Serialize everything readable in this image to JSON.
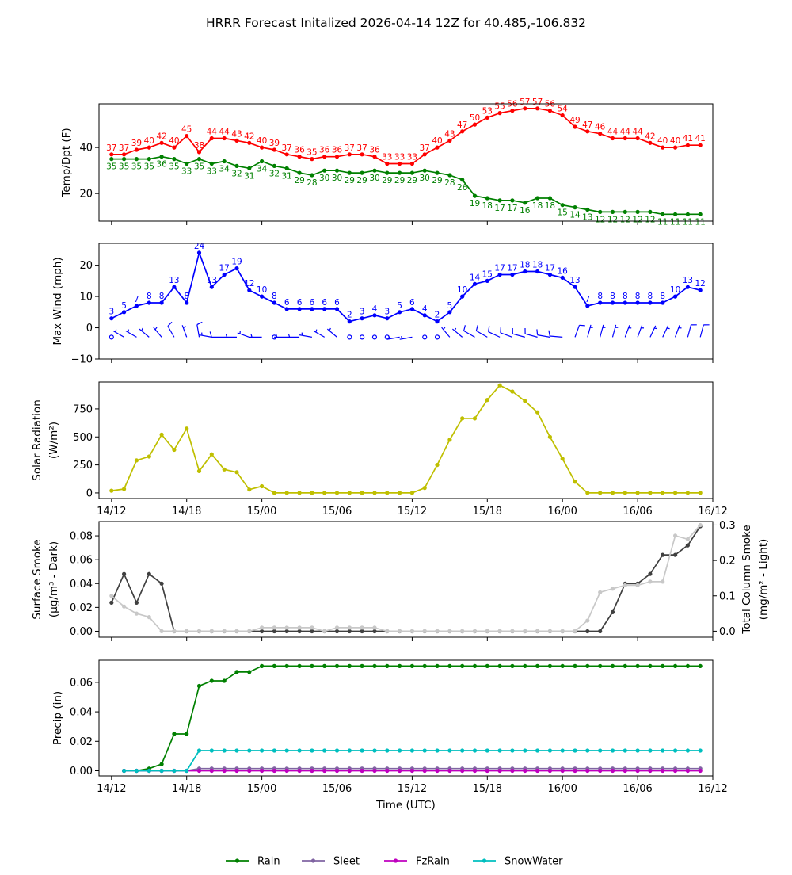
{
  "title": "HRRR Forecast Initalized 2026-04-14 12Z for 40.485,-106.832",
  "colors": {
    "temp": "#ff0000",
    "dewpoint": "#008000",
    "wind": "#0000ff",
    "solar": "#bfbf00",
    "smoke_dark": "#404040",
    "smoke_light": "#c8c8c8",
    "rain": "#008000",
    "sleet": "#8064a2",
    "fzrain": "#bf00bf",
    "snowwater": "#00bfbf"
  },
  "x_axis": {
    "range": [
      -1,
      48
    ],
    "ticks": [
      0,
      6,
      12,
      18,
      24,
      30,
      36,
      42,
      48
    ],
    "tick_labels": [
      "14/12",
      "14/18",
      "15/00",
      "15/06",
      "15/12",
      "15/18",
      "16/00",
      "16/06",
      "16/12"
    ],
    "label": "Time (UTC)"
  },
  "chart_data": [
    {
      "type": "line",
      "panel": "temp",
      "ylabel": "Temp/Dpt (F)",
      "ylim": [
        8,
        59
      ],
      "yticks": [
        20,
        40
      ],
      "ytick_labels": [
        "20",
        "40"
      ],
      "freezing_line": 32,
      "series": [
        {
          "name": "Temperature",
          "labels": true,
          "values": [
            37,
            37,
            39,
            40,
            42,
            40,
            45,
            38,
            44,
            44,
            43,
            42,
            40,
            39,
            37,
            36,
            35,
            36,
            36,
            37,
            37,
            36,
            33,
            33,
            33,
            37,
            40,
            43,
            47,
            50,
            53,
            55,
            56,
            57,
            57,
            56,
            54,
            49,
            47,
            46,
            44,
            44,
            44,
            42,
            40,
            40,
            41,
            41
          ]
        },
        {
          "name": "Dewpoint",
          "labels": true,
          "values": [
            35,
            35,
            35,
            35,
            36,
            35,
            33,
            35,
            33,
            34,
            32,
            31,
            34,
            32,
            31,
            29,
            28,
            30,
            30,
            29,
            29,
            30,
            29,
            29,
            29,
            30,
            29,
            28,
            26,
            19,
            18,
            17,
            17,
            16,
            18,
            18,
            15,
            14,
            13,
            12,
            12,
            12,
            12,
            12,
            11,
            11,
            11,
            11
          ]
        }
      ]
    },
    {
      "type": "line",
      "panel": "wind",
      "ylabel": "Max Wind (mph)",
      "ylim": [
        -10,
        27
      ],
      "yticks": [
        -10,
        0,
        10,
        20
      ],
      "ytick_labels": [
        "−10",
        "0",
        "10",
        "20"
      ],
      "series": [
        {
          "name": "Max Wind",
          "labels": true,
          "values": [
            3,
            5,
            7,
            8,
            8,
            13,
            8,
            24,
            13,
            17,
            19,
            12,
            10,
            8,
            6,
            6,
            6,
            6,
            6,
            2,
            3,
            4,
            3,
            5,
            6,
            4,
            2,
            5,
            10,
            14,
            15,
            17,
            17,
            18,
            18,
            17,
            16,
            13,
            7,
            8,
            8,
            8,
            8,
            8,
            8,
            10,
            13,
            12
          ]
        }
      ],
      "wind_barbs": {
        "y_value": -3,
        "directions": [
          0,
          300,
          300,
          310,
          320,
          330,
          340,
          350,
          280,
          270,
          270,
          290,
          270,
          0,
          270,
          270,
          280,
          300,
          310,
          0,
          0,
          0,
          0,
          260,
          260,
          0,
          0,
          320,
          310,
          300,
          300,
          295,
          290,
          285,
          285,
          280,
          275,
          20,
          15,
          15,
          15,
          20,
          20,
          25,
          25,
          20,
          15,
          15
        ],
        "speeds": [
          0,
          8,
          8,
          8,
          8,
          13,
          8,
          13,
          8,
          13,
          8,
          8,
          8,
          0,
          8,
          8,
          8,
          8,
          8,
          0,
          0,
          0,
          0,
          8,
          8,
          0,
          0,
          8,
          8,
          13,
          13,
          13,
          13,
          13,
          13,
          13,
          13,
          13,
          8,
          8,
          8,
          8,
          8,
          8,
          8,
          8,
          13,
          13
        ]
      }
    },
    {
      "type": "line",
      "panel": "solar",
      "ylabel": "Solar Radiation",
      "ylabel_units": "(W/m²)",
      "ylim": [
        -50,
        990
      ],
      "yticks": [
        0,
        250,
        500,
        750
      ],
      "ytick_labels": [
        "0",
        "250",
        "500",
        "750"
      ],
      "series": [
        {
          "name": "Solar Radiation",
          "values": [
            20,
            35,
            290,
            325,
            520,
            385,
            575,
            195,
            345,
            210,
            185,
            30,
            60,
            0,
            0,
            0,
            0,
            0,
            0,
            0,
            0,
            0,
            0,
            0,
            0,
            45,
            250,
            475,
            665,
            665,
            830,
            960,
            905,
            820,
            720,
            500,
            305,
            100,
            0,
            0,
            0,
            0,
            0,
            0,
            0,
            0,
            0,
            0
          ]
        }
      ]
    },
    {
      "type": "line",
      "panel": "smoke",
      "ylabel": "Surface Smoke",
      "ylabel_units": "(μg/m³ - Dark)",
      "ylim": [
        -0.005,
        0.092
      ],
      "yticks": [
        0,
        0.02,
        0.04,
        0.06,
        0.08
      ],
      "ytick_labels": [
        "0.00",
        "0.02",
        "0.04",
        "0.06",
        "0.08"
      ],
      "y2label": "Total Column Smoke",
      "y2label_units": "(mg/m² - Light)",
      "y2lim": [
        -0.017,
        0.31
      ],
      "y2ticks": [
        0,
        0.1,
        0.2,
        0.3
      ],
      "y2tick_labels": [
        "0.0",
        "0.1",
        "0.2",
        "0.3"
      ],
      "series": [
        {
          "name": "Surface Smoke",
          "axis": "left",
          "values": [
            0.024,
            0.048,
            0.024,
            0.048,
            0.04,
            0,
            0,
            0,
            0,
            0,
            0,
            0,
            0,
            0,
            0,
            0,
            0,
            0,
            0,
            0,
            0,
            0,
            0,
            0,
            0,
            0,
            0,
            0,
            0,
            0,
            0,
            0,
            0,
            0,
            0,
            0,
            0,
            0,
            0,
            0,
            0.016,
            0.04,
            0.04,
            0.048,
            0.064,
            0.064,
            0.072,
            0.088
          ]
        },
        {
          "name": "Total Column Smoke",
          "axis": "right",
          "values": [
            0.1,
            0.07,
            0.05,
            0.04,
            0,
            0,
            0,
            0,
            0,
            0,
            0,
            0,
            0.01,
            0.01,
            0.01,
            0.01,
            0.01,
            0,
            0.01,
            0.01,
            0.01,
            0.01,
            0,
            0,
            0,
            0,
            0,
            0,
            0,
            0,
            0,
            0,
            0,
            0,
            0,
            0,
            0,
            0,
            0.03,
            0.11,
            0.12,
            0.13,
            0.13,
            0.14,
            0.14,
            0.27,
            0.26,
            0.3
          ]
        }
      ]
    },
    {
      "type": "line",
      "panel": "precip",
      "ylabel": "Precip (in)",
      "ylim": [
        -0.0035,
        0.075
      ],
      "yticks": [
        0,
        0.02,
        0.04,
        0.06
      ],
      "ytick_labels": [
        "0.00",
        "0.02",
        "0.04",
        "0.06"
      ],
      "x_start": 1,
      "series": [
        {
          "name": "Rain",
          "values": [
            0,
            0,
            0.0015,
            0.0045,
            0.025,
            0.025,
            0.0575,
            0.061,
            0.061,
            0.067,
            0.067,
            0.071,
            0.071,
            0.071,
            0.071,
            0.071,
            0.071,
            0.071,
            0.071,
            0.071,
            0.071,
            0.071,
            0.071,
            0.071,
            0.071,
            0.071,
            0.071,
            0.071,
            0.071,
            0.071,
            0.071,
            0.071,
            0.071,
            0.071,
            0.071,
            0.071,
            0.071,
            0.071,
            0.071,
            0.071,
            0.071,
            0.071,
            0.071,
            0.071,
            0.071,
            0.071,
            0.071
          ]
        },
        {
          "name": "Sleet",
          "values": [
            0,
            0,
            0,
            0,
            0,
            0,
            0.0015,
            0.0015,
            0.0015,
            0.0015,
            0.0015,
            0.0015,
            0.0015,
            0.0015,
            0.0015,
            0.0015,
            0.0015,
            0.0015,
            0.0015,
            0.0015,
            0.0015,
            0.0015,
            0.0015,
            0.0015,
            0.0015,
            0.0015,
            0.0015,
            0.0015,
            0.0015,
            0.0015,
            0.0015,
            0.0015,
            0.0015,
            0.0015,
            0.0015,
            0.0015,
            0.0015,
            0.0015,
            0.0015,
            0.0015,
            0.0015,
            0.0015,
            0.0015,
            0.0015,
            0.0015,
            0.0015,
            0.0015
          ]
        },
        {
          "name": "FzRain",
          "values": [
            0,
            0,
            0,
            0,
            0,
            0,
            0,
            0,
            0,
            0,
            0,
            0,
            0,
            0,
            0,
            0,
            0,
            0,
            0,
            0,
            0,
            0,
            0,
            0,
            0,
            0,
            0,
            0,
            0,
            0,
            0,
            0,
            0,
            0,
            0,
            0,
            0,
            0,
            0,
            0,
            0,
            0,
            0,
            0,
            0,
            0,
            0
          ]
        },
        {
          "name": "SnowWater",
          "values": [
            0,
            0,
            0,
            0,
            0,
            0,
            0.0137,
            0.0137,
            0.0137,
            0.0137,
            0.0137,
            0.0137,
            0.0137,
            0.0137,
            0.0137,
            0.0137,
            0.0137,
            0.0137,
            0.0137,
            0.0137,
            0.0137,
            0.0137,
            0.0137,
            0.0137,
            0.0137,
            0.0137,
            0.0137,
            0.0137,
            0.0137,
            0.0137,
            0.0137,
            0.0137,
            0.0137,
            0.0137,
            0.0137,
            0.0137,
            0.0137,
            0.0137,
            0.0137,
            0.0137,
            0.0137,
            0.0137,
            0.0137,
            0.0137,
            0.0137,
            0.0137,
            0.0137
          ]
        }
      ]
    }
  ],
  "legend": {
    "position": "bottom-center",
    "items": [
      "Rain",
      "Sleet",
      "FzRain",
      "SnowWater"
    ]
  }
}
